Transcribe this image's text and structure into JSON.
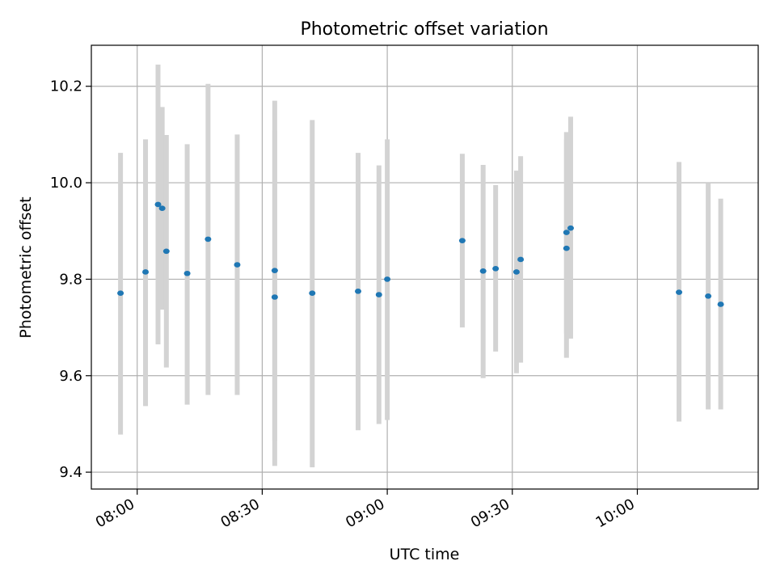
{
  "chart_data": {
    "type": "scatter",
    "title": "Photometric offset variation",
    "xlabel": "UTC time",
    "ylabel": "Photometric offset",
    "x_unit": "HH:MM UTC",
    "xlim": [
      "07:49",
      "10:29"
    ],
    "ylim": [
      9.365,
      10.285
    ],
    "x_ticks": [
      "08:00",
      "08:30",
      "09:00",
      "09:30",
      "10:00"
    ],
    "y_ticks": [
      "9.4",
      "9.6",
      "9.8",
      "10.0",
      "10.2"
    ],
    "grid": true,
    "colors": {
      "point": "#1f77b4",
      "errorbar": "#d3d3d3",
      "grid": "#b0b0b0"
    },
    "series": [
      {
        "points": [
          {
            "x": "07:56",
            "y": 9.771,
            "y_low": 9.478,
            "y_high": 10.062
          },
          {
            "x": "08:02",
            "y": 9.815,
            "y_low": 9.537,
            "y_high": 10.09
          },
          {
            "x": "08:05",
            "y": 9.955,
            "y_low": 9.665,
            "y_high": 10.245
          },
          {
            "x": "08:06",
            "y": 9.947,
            "y_low": 9.737,
            "y_high": 10.157
          },
          {
            "x": "08:07",
            "y": 9.858,
            "y_low": 9.617,
            "y_high": 10.099
          },
          {
            "x": "08:12",
            "y": 9.812,
            "y_low": 9.54,
            "y_high": 10.08
          },
          {
            "x": "08:17",
            "y": 9.883,
            "y_low": 9.56,
            "y_high": 10.205
          },
          {
            "x": "08:24",
            "y": 9.83,
            "y_low": 9.56,
            "y_high": 10.1
          },
          {
            "x": "08:33",
            "y": 9.818,
            "y_low": 9.465,
            "y_high": 10.17
          },
          {
            "x": "08:33",
            "y": 9.763,
            "y_low": 9.413,
            "y_high": 10.108
          },
          {
            "x": "08:42",
            "y": 9.771,
            "y_low": 9.41,
            "y_high": 10.13
          },
          {
            "x": "08:53",
            "y": 9.775,
            "y_low": 9.487,
            "y_high": 10.062
          },
          {
            "x": "08:58",
            "y": 9.768,
            "y_low": 9.5,
            "y_high": 10.036
          },
          {
            "x": "09:00",
            "y": 9.8,
            "y_low": 9.508,
            "y_high": 10.09
          },
          {
            "x": "09:18",
            "y": 9.88,
            "y_low": 9.7,
            "y_high": 10.06
          },
          {
            "x": "09:23",
            "y": 9.817,
            "y_low": 9.595,
            "y_high": 10.037
          },
          {
            "x": "09:26",
            "y": 9.822,
            "y_low": 9.65,
            "y_high": 9.995
          },
          {
            "x": "09:31",
            "y": 9.815,
            "y_low": 9.605,
            "y_high": 10.025
          },
          {
            "x": "09:32",
            "y": 9.841,
            "y_low": 9.627,
            "y_high": 10.055
          },
          {
            "x": "09:43",
            "y": 9.897,
            "y_low": 9.687,
            "y_high": 10.105
          },
          {
            "x": "09:43",
            "y": 9.864,
            "y_low": 9.637,
            "y_high": 10.09
          },
          {
            "x": "09:44",
            "y": 9.906,
            "y_low": 9.677,
            "y_high": 10.137
          },
          {
            "x": "10:10",
            "y": 9.773,
            "y_low": 9.505,
            "y_high": 10.043
          },
          {
            "x": "10:17",
            "y": 9.765,
            "y_low": 9.53,
            "y_high": 10.0
          },
          {
            "x": "10:20",
            "y": 9.748,
            "y_low": 9.53,
            "y_high": 9.967
          }
        ]
      }
    ]
  }
}
